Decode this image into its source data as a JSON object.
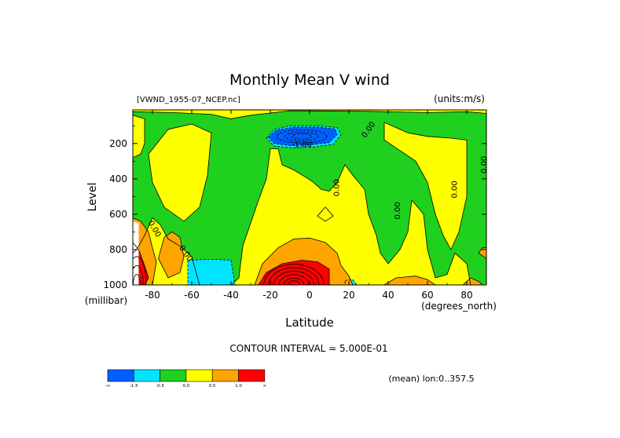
{
  "chart_data": {
    "type": "heatmap",
    "title": "Monthly Mean V wind",
    "dataset_label": "[VWND_1955-07_NCEP.nc]",
    "units_label": "(units:m/s)",
    "xlabel": "Latitude",
    "ylabel": "Level",
    "x_unit_label": "(degrees_north)",
    "y_unit_label": "(millibar)",
    "xlim": [
      -90,
      90
    ],
    "ylim": [
      1000,
      10
    ],
    "x_ticks": [
      {
        "value": -80,
        "label": "-80"
      },
      {
        "value": -60,
        "label": "-60"
      },
      {
        "value": -40,
        "label": "-40"
      },
      {
        "value": -20,
        "label": "-20"
      },
      {
        "value": 0,
        "label": "0"
      },
      {
        "value": 20,
        "label": "20"
      },
      {
        "value": 40,
        "label": "40"
      },
      {
        "value": 60,
        "label": "60"
      },
      {
        "value": 80,
        "label": "80"
      }
    ],
    "y_ticks": [
      {
        "value": 200,
        "label": "200"
      },
      {
        "value": 400,
        "label": "400"
      },
      {
        "value": 600,
        "label": "600"
      },
      {
        "value": 800,
        "label": "800"
      },
      {
        "value": 1000,
        "label": "1000"
      }
    ],
    "contour_interval_label": "CONTOUR INTERVAL = 5.000E-01",
    "mean_label": "(mean) lon:0..357.5",
    "colorbar": [
      {
        "color": "#0060ff",
        "label": "-∞"
      },
      {
        "color": "#00e5ff",
        "label": "-1.5"
      },
      {
        "color": "#1fd01f",
        "label": "-0.5"
      },
      {
        "color": "#ffff00",
        "label": "0.0"
      },
      {
        "color": "#ffa500",
        "label": "0.5"
      },
      {
        "color": "#ff0000",
        "label": "1.0"
      }
    ],
    "colorbar_end_label": "∞",
    "contour_labels": [
      {
        "text": "0.00",
        "x": 31,
        "y": 130,
        "angle": -55
      },
      {
        "text": "-1.00",
        "x": -4,
        "y": 220,
        "angle": 0
      },
      {
        "text": "0.00",
        "x": 15,
        "y": 450,
        "angle": -90
      },
      {
        "text": "0.00",
        "x": 46,
        "y": 580,
        "angle": -90
      },
      {
        "text": "0.00",
        "x": 75,
        "y": 460,
        "angle": -90
      },
      {
        "text": "0.00",
        "x": 90,
        "y": 320,
        "angle": -90
      },
      {
        "text": "0.00",
        "x": -80,
        "y": 690,
        "angle": 60
      },
      {
        "text": "0.00",
        "x": -64,
        "y": 830,
        "angle": 55
      }
    ],
    "regions": [
      {
        "level": "yellow",
        "color": "#ffff00",
        "pts": [
          [
            -90,
            10
          ],
          [
            90,
            10
          ],
          [
            90,
            1000
          ],
          [
            -90,
            1000
          ]
        ]
      },
      {
        "level": "green",
        "color": "#1fd01f",
        "pts": [
          [
            -90,
            20
          ],
          [
            -70,
            25
          ],
          [
            -50,
            35
          ],
          [
            -40,
            60
          ],
          [
            -30,
            40
          ],
          [
            -10,
            15
          ],
          [
            30,
            18
          ],
          [
            60,
            25
          ],
          [
            80,
            20
          ],
          [
            90,
            30
          ],
          [
            90,
            1000
          ],
          [
            82,
            1000
          ],
          [
            80,
            880
          ],
          [
            74,
            820
          ],
          [
            70,
            940
          ],
          [
            64,
            960
          ],
          [
            60,
            800
          ],
          [
            58,
            600
          ],
          [
            52,
            520
          ],
          [
            50,
            700
          ],
          [
            46,
            800
          ],
          [
            40,
            880
          ],
          [
            36,
            820
          ],
          [
            34,
            720
          ],
          [
            30,
            600
          ],
          [
            28,
            460
          ],
          [
            22,
            380
          ],
          [
            18,
            320
          ],
          [
            14,
            420
          ],
          [
            10,
            470
          ],
          [
            6,
            460
          ],
          [
            2,
            420
          ],
          [
            -2,
            390
          ],
          [
            -8,
            350
          ],
          [
            -14,
            320
          ],
          [
            -16,
            230
          ],
          [
            -20,
            230
          ],
          [
            -22,
            400
          ],
          [
            -26,
            520
          ],
          [
            -30,
            650
          ],
          [
            -34,
            780
          ],
          [
            -36,
            960
          ],
          [
            -40,
            1000
          ],
          [
            -56,
            1000
          ],
          [
            -60,
            840
          ],
          [
            -66,
            780
          ],
          [
            -72,
            740
          ],
          [
            -76,
            660
          ],
          [
            -80,
            620
          ],
          [
            -84,
            720
          ],
          [
            -88,
            800
          ],
          [
            -90,
            820
          ]
        ]
      },
      {
        "level": "yellow",
        "color": "#ffff00",
        "pts": [
          [
            -72,
            120
          ],
          [
            -60,
            90
          ],
          [
            -50,
            140
          ],
          [
            -52,
            380
          ],
          [
            -56,
            560
          ],
          [
            -64,
            640
          ],
          [
            -74,
            560
          ],
          [
            -80,
            420
          ],
          [
            -82,
            260
          ]
        ]
      },
      {
        "level": "yellow",
        "color": "#ffff00",
        "pts": [
          [
            38,
            80
          ],
          [
            50,
            140
          ],
          [
            60,
            160
          ],
          [
            72,
            170
          ],
          [
            80,
            180
          ],
          [
            80,
            500
          ],
          [
            76,
            700
          ],
          [
            72,
            800
          ],
          [
            68,
            720
          ],
          [
            64,
            600
          ],
          [
            60,
            420
          ],
          [
            54,
            300
          ],
          [
            46,
            240
          ],
          [
            38,
            180
          ]
        ]
      },
      {
        "level": "yellow",
        "color": "#ffff00",
        "pts": [
          [
            -90,
            40
          ],
          [
            -84,
            60
          ],
          [
            -84,
            200
          ],
          [
            -86,
            260
          ],
          [
            -90,
            280
          ]
        ]
      },
      {
        "level": "yellow",
        "color": "#ffff00",
        "pts": [
          [
            4,
            610
          ],
          [
            8,
            560
          ],
          [
            12,
            610
          ],
          [
            8,
            640
          ]
        ]
      },
      {
        "level": "cyan",
        "color": "#00e5ff",
        "pts": [
          [
            -22,
            170
          ],
          [
            -18,
            120
          ],
          [
            -10,
            100
          ],
          [
            4,
            100
          ],
          [
            14,
            110
          ],
          [
            16,
            150
          ],
          [
            12,
            205
          ],
          [
            2,
            220
          ],
          [
            -8,
            225
          ],
          [
            -18,
            215
          ]
        ]
      },
      {
        "level": "blue",
        "color": "#0060ff",
        "pts": [
          [
            -21,
            165
          ],
          [
            -17,
            125
          ],
          [
            -8,
            108
          ],
          [
            4,
            108
          ],
          [
            13,
            118
          ],
          [
            14,
            150
          ],
          [
            10,
            195
          ],
          [
            0,
            208
          ],
          [
            -10,
            212
          ],
          [
            -18,
            200
          ]
        ]
      },
      {
        "level": "cyan",
        "color": "#00e5ff",
        "pts": [
          [
            -62,
            860
          ],
          [
            -50,
            855
          ],
          [
            -40,
            860
          ],
          [
            -38,
            1000
          ],
          [
            -62,
            1000
          ]
        ]
      },
      {
        "level": "cyan",
        "color": "#00e5ff",
        "pts": [
          [
            18,
            975
          ],
          [
            22,
            970
          ],
          [
            24,
            1000
          ],
          [
            18,
            1000
          ]
        ]
      },
      {
        "level": "orange",
        "color": "#ffa500",
        "pts": [
          [
            -28,
            1000
          ],
          [
            -24,
            880
          ],
          [
            -16,
            790
          ],
          [
            -8,
            740
          ],
          [
            0,
            735
          ],
          [
            8,
            760
          ],
          [
            14,
            820
          ],
          [
            16,
            890
          ],
          [
            20,
            950
          ],
          [
            22,
            1000
          ]
        ]
      },
      {
        "level": "orange",
        "color": "#ffa500",
        "pts": [
          [
            -90,
            620
          ],
          [
            -86,
            640
          ],
          [
            -82,
            700
          ],
          [
            -80,
            790
          ],
          [
            -78,
            870
          ],
          [
            -80,
            1000
          ],
          [
            -90,
            1000
          ]
        ]
      },
      {
        "level": "orange",
        "color": "#ffa500",
        "pts": [
          [
            -77,
            850
          ],
          [
            -74,
            730
          ],
          [
            -70,
            700
          ],
          [
            -66,
            730
          ],
          [
            -64,
            840
          ],
          [
            -66,
            930
          ],
          [
            -72,
            960
          ]
        ]
      },
      {
        "level": "orange",
        "color": "#ffa500",
        "pts": [
          [
            38,
            1000
          ],
          [
            44,
            960
          ],
          [
            54,
            950
          ],
          [
            60,
            970
          ],
          [
            64,
            1000
          ]
        ]
      },
      {
        "level": "orange",
        "color": "#ffa500",
        "pts": [
          [
            78,
            1000
          ],
          [
            82,
            960
          ],
          [
            86,
            980
          ],
          [
            88,
            1000
          ]
        ]
      },
      {
        "level": "orange",
        "color": "#ffa500",
        "pts": [
          [
            86,
            820
          ],
          [
            88,
            790
          ],
          [
            90,
            790
          ],
          [
            90,
            850
          ]
        ]
      },
      {
        "level": "red",
        "color": "#ff0000",
        "pts": [
          [
            -26,
            1000
          ],
          [
            -22,
            930
          ],
          [
            -14,
            880
          ],
          [
            -4,
            860
          ],
          [
            4,
            870
          ],
          [
            10,
            910
          ],
          [
            10,
            1000
          ]
        ]
      },
      {
        "level": "red",
        "color": "#ff0000",
        "pts": [
          [
            -90,
            760
          ],
          [
            -87,
            800
          ],
          [
            -84,
            890
          ],
          [
            -82,
            960
          ],
          [
            -84,
            1000
          ],
          [
            -90,
            1000
          ]
        ]
      }
    ],
    "white_gap": [
      [
        -90,
        640
      ],
      [
        -87,
        650
      ],
      [
        -87,
        1000
      ],
      [
        -90,
        1000
      ]
    ]
  }
}
